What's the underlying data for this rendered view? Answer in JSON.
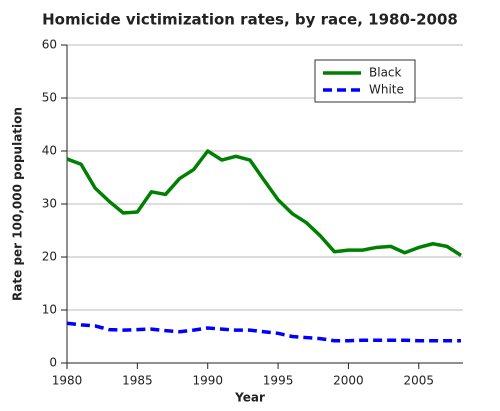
{
  "chart_data": {
    "type": "line",
    "title": "Homicide victimization rates, by race, 1980-2008",
    "x_label": "Year",
    "y_label": "Rate per 100,000 population",
    "x": [
      1980,
      1981,
      1982,
      1983,
      1984,
      1985,
      1986,
      1987,
      1988,
      1989,
      1990,
      1991,
      1992,
      1993,
      1994,
      1995,
      1996,
      1997,
      1998,
      1999,
      2000,
      2001,
      2002,
      2003,
      2004,
      2005,
      2006,
      2007,
      2008
    ],
    "series": [
      {
        "name": "Black",
        "color": "#008000",
        "style": "solid",
        "values": [
          38.5,
          37.5,
          33,
          30.5,
          28.3,
          28.5,
          32.3,
          31.8,
          34.8,
          36.5,
          40,
          38.3,
          39,
          38.3,
          34.5,
          30.8,
          28.2,
          26.5,
          24,
          21,
          21.3,
          21.3,
          21.8,
          22,
          20.8,
          21.8,
          22.5,
          22,
          20.3
        ]
      },
      {
        "name": "White",
        "color": "#0000ff",
        "style": "dashed",
        "values": [
          7.5,
          7.2,
          7,
          6.3,
          6.2,
          6.3,
          6.4,
          6.1,
          5.9,
          6.2,
          6.6,
          6.4,
          6.2,
          6.2,
          5.9,
          5.6,
          5,
          4.8,
          4.6,
          4.2,
          4.2,
          4.3,
          4.3,
          4.3,
          4.3,
          4.2,
          4.2,
          4.2,
          4.2
        ]
      }
    ],
    "xlim": [
      1980,
      2008
    ],
    "xticks": [
      1980,
      1985,
      1990,
      1995,
      2000,
      2005
    ],
    "ylim": [
      0,
      60
    ],
    "yticks": [
      0,
      10,
      20,
      30,
      40,
      50,
      60
    ],
    "grid": true,
    "legend": "upper right"
  }
}
